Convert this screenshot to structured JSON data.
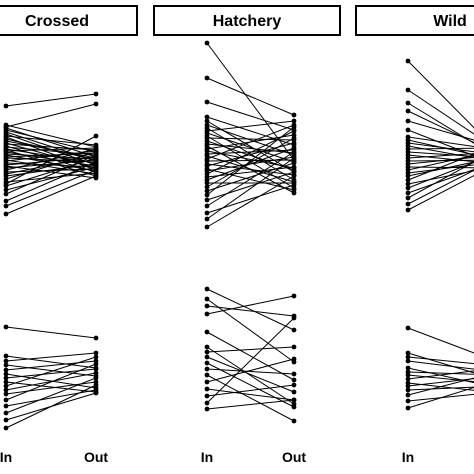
{
  "chart_data": {
    "type": "line",
    "x_categories": [
      "In",
      "Out"
    ],
    "panels": [
      {
        "title": "Crossed",
        "top_group": {
          "pairs": [
            [
              106,
              94
            ],
            [
              125,
              147
            ],
            [
              128,
              157
            ],
            [
              130,
              152
            ],
            [
              132,
              161
            ],
            [
              134,
              165
            ],
            [
              136,
              145
            ],
            [
              137,
              170
            ],
            [
              139,
              160
            ],
            [
              141,
              158
            ],
            [
              143,
              168
            ],
            [
              144,
              150
            ],
            [
              146,
              172
            ],
            [
              147,
              155
            ],
            [
              149,
              163
            ],
            [
              150,
              176
            ],
            [
              151,
              148
            ],
            [
              152,
              166
            ],
            [
              154,
              159
            ],
            [
              155,
              171
            ],
            [
              157,
              153
            ],
            [
              158,
              162
            ],
            [
              160,
              174
            ],
            [
              161,
              151
            ],
            [
              163,
              167
            ],
            [
              165,
              157
            ],
            [
              166,
              178
            ],
            [
              168,
              160
            ],
            [
              170,
              149
            ],
            [
              172,
              169
            ],
            [
              174,
              156
            ],
            [
              176,
              164
            ],
            [
              179,
              152
            ],
            [
              182,
              173
            ],
            [
              186,
              158
            ],
            [
              190,
              167
            ],
            [
              194,
              155
            ],
            [
              201,
              162
            ],
            [
              206,
              170
            ],
            [
              214,
              176
            ],
            [
              127,
              104
            ],
            [
              184,
              136
            ]
          ]
        },
        "bottom_group": {
          "pairs": [
            [
              327,
              338
            ],
            [
              356,
              368
            ],
            [
              361,
              353
            ],
            [
              365,
              376
            ],
            [
              370,
              361
            ],
            [
              374,
              388
            ],
            [
              378,
              369
            ],
            [
              382,
              392
            ],
            [
              386,
              357
            ],
            [
              390,
              373
            ],
            [
              394,
              382
            ],
            [
              400,
              364
            ],
            [
              406,
              390
            ],
            [
              413,
              378
            ],
            [
              420,
              393
            ],
            [
              428,
              385
            ]
          ]
        }
      },
      {
        "title": "Hatchery",
        "top_group": {
          "pairs": [
            [
              43,
              160
            ],
            [
              78,
              115
            ],
            [
              102,
              130
            ],
            [
              117,
              145
            ],
            [
              121,
              172
            ],
            [
              125,
              155
            ],
            [
              128,
              180
            ],
            [
              131,
              121
            ],
            [
              133,
              162
            ],
            [
              136,
              188
            ],
            [
              138,
              140
            ],
            [
              141,
              170
            ],
            [
              144,
              153
            ],
            [
              146,
              193
            ],
            [
              149,
              135
            ],
            [
              151,
              168
            ],
            [
              154,
              150
            ],
            [
              156,
              182
            ],
            [
              159,
              125
            ],
            [
              161,
              160
            ],
            [
              164,
              175
            ],
            [
              166,
              143
            ],
            [
              169,
              190
            ],
            [
              171,
              157
            ],
            [
              174,
              131
            ],
            [
              177,
              167
            ],
            [
              180,
              148
            ],
            [
              183,
              183
            ],
            [
              187,
              138
            ],
            [
              191,
              163
            ],
            [
              195,
              127
            ],
            [
              200,
              172
            ],
            [
              206,
              152
            ],
            [
              213,
              185
            ],
            [
              219,
              158
            ],
            [
              227,
              176
            ]
          ]
        },
        "bottom_group": {
          "pairs": [
            [
              289,
              330
            ],
            [
              299,
              362
            ],
            [
              306,
              316
            ],
            [
              314,
              296
            ],
            [
              332,
              380
            ],
            [
              347,
              404
            ],
            [
              352,
              347
            ],
            [
              357,
              392
            ],
            [
              363,
              407
            ],
            [
              369,
              374
            ],
            [
              375,
              421
            ],
            [
              382,
              359
            ],
            [
              389,
              400
            ],
            [
              396,
              385
            ],
            [
              403,
              318
            ],
            [
              409,
              400
            ]
          ]
        }
      },
      {
        "title": "Wild",
        "top_group": {
          "pairs": [
            [
              61,
              152
            ],
            [
              90,
              150
            ],
            [
              103,
              158
            ],
            [
              111,
              154
            ],
            [
              121,
              147
            ],
            [
              130,
              165
            ],
            [
              137,
              150
            ],
            [
              140,
              160
            ],
            [
              143,
              155
            ],
            [
              146,
              162
            ],
            [
              149,
              148
            ],
            [
              152,
              158
            ],
            [
              155,
              164
            ],
            [
              158,
              152
            ],
            [
              161,
              160
            ],
            [
              164,
              155
            ],
            [
              167,
              168
            ],
            [
              170,
              150
            ],
            [
              173,
              162
            ],
            [
              176,
              157
            ],
            [
              180,
              145
            ],
            [
              184,
              166
            ],
            [
              188,
              153
            ],
            [
              193,
              161
            ],
            [
              198,
              149
            ],
            [
              204,
              158
            ],
            [
              210,
              163
            ]
          ]
        },
        "bottom_group": {
          "pairs": [
            [
              328,
              362
            ],
            [
              353,
              380
            ],
            [
              357,
              366
            ],
            [
              361,
              372
            ],
            [
              368,
              388
            ],
            [
              372,
              375
            ],
            [
              375,
              384
            ],
            [
              379,
              368
            ],
            [
              383,
              393
            ],
            [
              386,
              376
            ],
            [
              390,
              386
            ],
            [
              395,
              372
            ],
            [
              401,
              392
            ],
            [
              408,
              380
            ]
          ]
        }
      }
    ]
  }
}
